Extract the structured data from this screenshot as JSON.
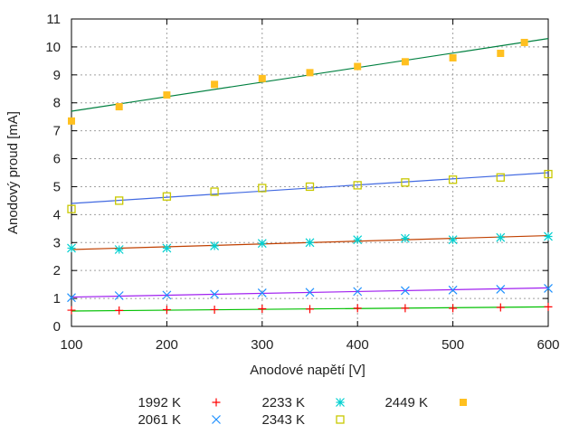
{
  "chart_data": {
    "type": "scatter",
    "title": "",
    "xlabel": "Anodové napětí [V]",
    "ylabel": "Anodový proud [mA]",
    "xlim": [
      100,
      600
    ],
    "ylim": [
      0,
      11
    ],
    "xticks": [
      100,
      200,
      300,
      400,
      500,
      600
    ],
    "yticks": [
      0,
      1,
      2,
      3,
      4,
      5,
      6,
      7,
      8,
      9,
      10,
      11
    ],
    "grid": true,
    "legend_placement": "bottom",
    "series": [
      {
        "name": "1992 K",
        "marker": "plus",
        "color": "#ff0000",
        "fit_color": "#00c000",
        "x": [
          100,
          150,
          200,
          250,
          300,
          350,
          400,
          450,
          500,
          550,
          600
        ],
        "y": [
          0.58,
          0.57,
          0.6,
          0.6,
          0.63,
          0.62,
          0.65,
          0.65,
          0.65,
          0.68,
          0.7
        ],
        "fit": [
          0.55,
          0.7
        ]
      },
      {
        "name": "2061 K",
        "marker": "cross",
        "color": "#1e90ff",
        "fit_color": "#a020f0",
        "x": [
          100,
          150,
          200,
          250,
          300,
          350,
          400,
          450,
          500,
          550,
          600
        ],
        "y": [
          1.03,
          1.1,
          1.12,
          1.15,
          1.2,
          1.22,
          1.25,
          1.28,
          1.3,
          1.33,
          1.36
        ],
        "fit": [
          1.05,
          1.38
        ]
      },
      {
        "name": "2233 K",
        "marker": "star",
        "color": "#00d0d0",
        "fit_color": "#c04000",
        "x": [
          100,
          150,
          200,
          250,
          300,
          350,
          400,
          450,
          500,
          550,
          600
        ],
        "y": [
          2.8,
          2.75,
          2.8,
          2.88,
          2.97,
          3.0,
          3.1,
          3.15,
          3.1,
          3.18,
          3.22
        ],
        "fit": [
          2.75,
          3.25
        ]
      },
      {
        "name": "2343 K",
        "marker": "open-square",
        "color": "#c8c800",
        "fit_color": "#4169e1",
        "x": [
          100,
          150,
          200,
          250,
          300,
          350,
          400,
          450,
          500,
          550,
          600
        ],
        "y": [
          4.2,
          4.5,
          4.65,
          4.82,
          4.95,
          5.0,
          5.05,
          5.15,
          5.25,
          5.33,
          5.45
        ],
        "fit": [
          4.4,
          5.5
        ]
      },
      {
        "name": "2449 K",
        "marker": "filled-square",
        "color": "#ffc020",
        "fit_color": "#008040",
        "x": [
          100,
          150,
          200,
          250,
          300,
          350,
          400,
          450,
          500,
          550,
          575
        ],
        "y": [
          7.35,
          7.86,
          8.28,
          8.66,
          8.87,
          9.08,
          9.3,
          9.47,
          9.61,
          9.77,
          10.16
        ],
        "fit": [
          7.7,
          10.3
        ]
      }
    ]
  }
}
